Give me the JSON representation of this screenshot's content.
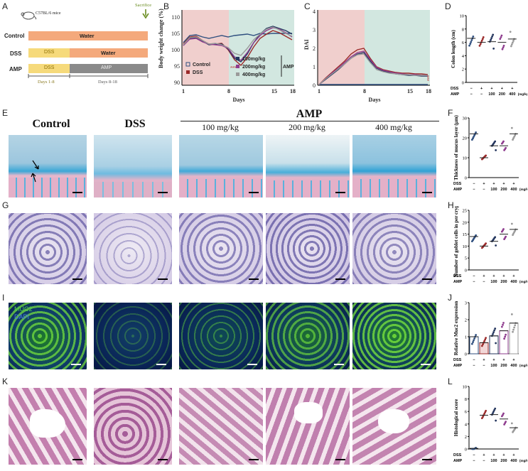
{
  "panel_letters": [
    "A",
    "B",
    "C",
    "D",
    "E",
    "F",
    "G",
    "H",
    "I",
    "J",
    "K",
    "L"
  ],
  "panelA": {
    "mouse_label": "C57BL/6 mice",
    "sacrifice_label": "Sacrifice",
    "rows": [
      {
        "group": "Control",
        "seg1": "Water",
        "seg2": ""
      },
      {
        "group": "DSS",
        "seg1": "DSS",
        "seg2": "Water"
      },
      {
        "group": "AMP",
        "seg1": "DSS",
        "seg2": "AMP"
      }
    ],
    "day_labels": [
      "Days 1-8",
      "Days 8-18"
    ],
    "colors": {
      "water": "#f4a97c",
      "dss": "#f6da7b",
      "amp": "#8a8a8a"
    }
  },
  "panelB": {
    "ylabel": "Body weight change (%)",
    "xlabel": "Days",
    "yticks": [
      "110",
      "105",
      "100",
      "95",
      "90"
    ],
    "xticks": [
      "1",
      "8",
      "15",
      "18"
    ],
    "legend": [
      "Control",
      "DSS",
      "100mg/kg",
      "200mg/kg",
      "400mg/kg"
    ],
    "legend_group": "AMP",
    "stars": "*****"
  },
  "panelC": {
    "ylabel": "DAI",
    "xlabel": "Days",
    "yticks": [
      "4",
      "3",
      "2",
      "1",
      "0"
    ],
    "xticks": [
      "1",
      "8",
      "15",
      "18"
    ],
    "stars": "***"
  },
  "panelD": {
    "ylabel": "Colon length (cm)",
    "yticks": [
      "10",
      "8",
      "6",
      "4",
      "2",
      "0"
    ],
    "dss_row": [
      "−",
      "+",
      "+",
      "+",
      "+"
    ],
    "amp_row": [
      "−",
      "−",
      "100",
      "200",
      "400"
    ],
    "unit": "(mg/kg)",
    "row_dss": "DSS",
    "row_amp": "AMP"
  },
  "panelE": {
    "conditions": [
      "Control",
      "DSS"
    ],
    "amp_header": "AMP",
    "doses": [
      "100 mg/kg",
      "200 mg/kg",
      "400 mg/kg"
    ]
  },
  "panelF": {
    "ylabel": "Thickness of mucus layer (μm)",
    "yticks": [
      "30",
      "20",
      "10",
      "0"
    ],
    "dss_row": [
      "−",
      "+",
      "+",
      "+",
      "+"
    ],
    "amp_row": [
      "−",
      "−",
      "100",
      "200",
      "400"
    ],
    "unit": "(mg/kg)",
    "row_dss": "DSS",
    "row_amp": "AMP"
  },
  "panelH": {
    "ylabel": "Number of goblet cells in per crypt",
    "yticks": [
      "25",
      "20",
      "15",
      "10",
      "5",
      "0"
    ],
    "dss_row": [
      "−",
      "+",
      "+",
      "+",
      "+"
    ],
    "amp_row": [
      "−",
      "−",
      "100",
      "200",
      "400"
    ],
    "unit": "(mg/kg)",
    "row_dss": "DSS",
    "row_amp": "AMP"
  },
  "panelI": {
    "stain1": "MUC2",
    "stain2": "DAPI"
  },
  "panelJ": {
    "ylabel": "Relative Muc2 expression",
    "yticks": [
      "3",
      "2",
      "1",
      "0"
    ],
    "dss_row": [
      "−",
      "+",
      "+",
      "+",
      "+"
    ],
    "amp_row": [
      "−",
      "−",
      "100",
      "200",
      "400"
    ],
    "unit": "(mg/kg)",
    "row_dss": "DSS",
    "row_amp": "AMP"
  },
  "panelL": {
    "ylabel": "Histological score",
    "yticks": [
      "10",
      "8",
      "6",
      "4",
      "2",
      "0"
    ],
    "dss_row": [
      "−",
      "+",
      "+",
      "+",
      "+"
    ],
    "amp_row": [
      "−",
      "−",
      "100",
      "200",
      "400"
    ],
    "unit": "(mg/kg)",
    "row_dss": "DSS",
    "row_amp": "AMP"
  },
  "chart_data": [
    {
      "type": "scatter",
      "panel": "D",
      "categories": [
        "Control",
        "DSS",
        "100",
        "200",
        "400"
      ],
      "means": [
        6.6,
        6.0,
        6.1,
        6.0,
        6.5
      ],
      "ylim": [
        0,
        10
      ]
    },
    {
      "type": "scatter",
      "panel": "F",
      "categories": [
        "Control",
        "DSS",
        "100",
        "200",
        "400"
      ],
      "means": [
        22,
        10,
        16,
        16,
        22
      ],
      "ylim": [
        0,
        30
      ]
    },
    {
      "type": "scatter",
      "panel": "H",
      "categories": [
        "Control",
        "DSS",
        "100",
        "200",
        "400"
      ],
      "means": [
        14,
        10,
        12,
        15,
        17
      ],
      "ylim": [
        0,
        25
      ]
    },
    {
      "type": "bar",
      "panel": "J",
      "categories": [
        "Control",
        "DSS",
        "100",
        "200",
        "400"
      ],
      "values": [
        1.0,
        0.65,
        1.05,
        1.35,
        1.8
      ],
      "ylim": [
        0,
        3
      ]
    },
    {
      "type": "scatter",
      "panel": "L",
      "categories": [
        "Control",
        "DSS",
        "100",
        "200",
        "400"
      ],
      "means": [
        0.1,
        5.4,
        5.5,
        4.8,
        3.4
      ],
      "ylim": [
        0,
        10
      ]
    }
  ]
}
